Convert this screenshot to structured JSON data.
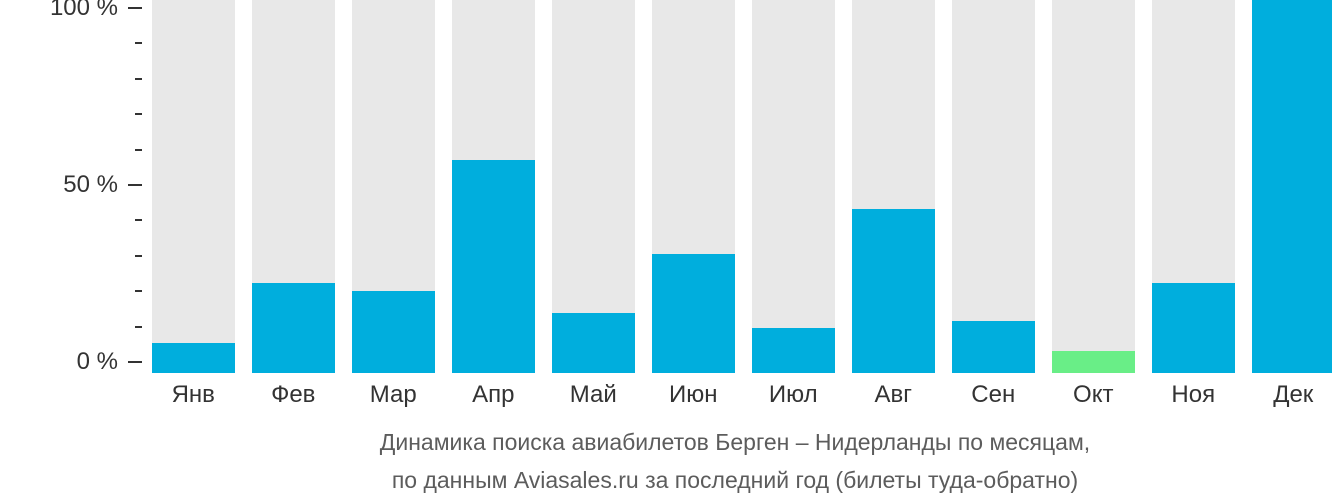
{
  "chart_data": {
    "type": "bar",
    "title": "Динамика поиска авиабилетов Берген – Нидерланды по месяцам,",
    "subtitle": "по данным Aviasales.ru за последний год (билеты туда-обратно)",
    "categories": [
      "Янв",
      "Фев",
      "Мар",
      "Апр",
      "Май",
      "Июн",
      "Июл",
      "Авг",
      "Сен",
      "Окт",
      "Ноя",
      "Дек"
    ],
    "values": [
      8,
      24,
      22,
      57,
      16,
      32,
      12,
      44,
      14,
      6,
      24,
      100
    ],
    "unit": "%",
    "xlabel": "",
    "ylabel": "",
    "ylim": [
      0,
      100
    ],
    "yticks_major": [
      {
        "value": 100,
        "label": "100 %"
      },
      {
        "value": 50,
        "label": "50 %"
      },
      {
        "value": 0,
        "label": "0 %"
      }
    ],
    "ytick_minor_step": 10,
    "grid": false,
    "legend": false,
    "highlight_index": 9,
    "colors": {
      "bar": "#00aedd",
      "highlight": "#69ee87",
      "track": "#e8e8e8",
      "axis_text": "#333333",
      "caption_text": "#5c5c5c"
    }
  }
}
